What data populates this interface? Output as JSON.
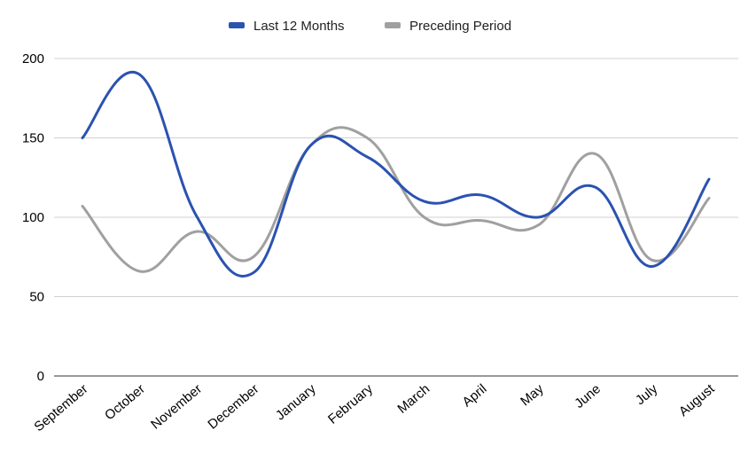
{
  "chart_data": {
    "type": "line",
    "categories": [
      "September",
      "October",
      "November",
      "December",
      "January",
      "February",
      "March",
      "April",
      "May",
      "June",
      "July",
      "August"
    ],
    "series": [
      {
        "name": "Last 12 Months",
        "color": "#2a52b0",
        "values": [
          150,
          190,
          101,
          65,
          145,
          138,
          110,
          114,
          100,
          119,
          69,
          124
        ]
      },
      {
        "name": "Preceding Period",
        "color": "#a0a0a0",
        "values": [
          107,
          66,
          91,
          75,
          145,
          150,
          100,
          98,
          95,
          140,
          73,
          112
        ]
      }
    ],
    "ylim": [
      0,
      200
    ],
    "yticks": [
      0,
      50,
      100,
      150,
      200
    ],
    "grid": true,
    "legend_position": "top-center",
    "smooth": true
  }
}
